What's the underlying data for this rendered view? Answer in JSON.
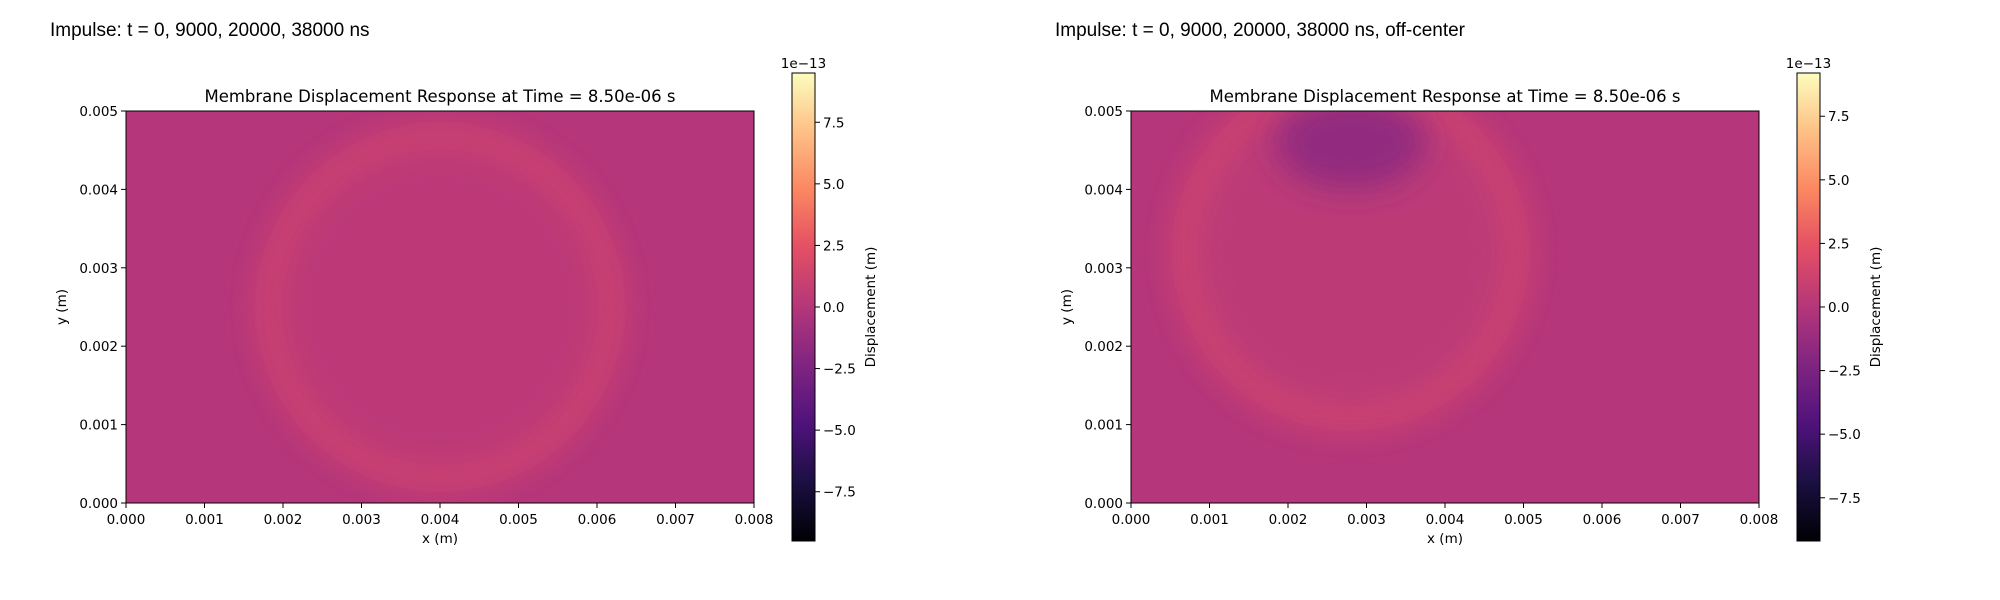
{
  "panels": [
    {
      "heading": "Impulse: t = 0, 9000, 20000, 38000 ns"
    },
    {
      "heading": "Impulse: t = 0, 9000, 20000, 38000 ns, off-center"
    }
  ],
  "chart_data": [
    {
      "type": "heatmap",
      "title": "Membrane Displacement Response at Time = 8.50e-06 s",
      "xlabel": "x (m)",
      "ylabel": "y (m)",
      "xlim": [
        0,
        0.008
      ],
      "ylim": [
        0,
        0.005
      ],
      "x_ticks": [
        "0.000",
        "0.001",
        "0.002",
        "0.003",
        "0.004",
        "0.005",
        "0.006",
        "0.007",
        "0.008"
      ],
      "y_ticks": [
        "0.000",
        "0.001",
        "0.002",
        "0.003",
        "0.004",
        "0.005"
      ],
      "colormap": "magma",
      "colorbar": {
        "label": "Displacement (m)",
        "offset_text": "1e−13",
        "range": [
          -9.5,
          9.5
        ],
        "ticks": [
          -7.5,
          -5.0,
          -2.5,
          0.0,
          2.5,
          5.0,
          7.5
        ],
        "tick_labels": [
          "−7.5",
          "−5.0",
          "−2.5",
          "0.0",
          "2.5",
          "5.0",
          "7.5"
        ]
      },
      "background_value": 0.0,
      "features": [
        {
          "shape": "ring",
          "center": [
            0.004,
            0.0025
          ],
          "radius": 0.00215,
          "width": 0.00025,
          "value": 2.0
        },
        {
          "shape": "disk",
          "center": [
            0.004,
            0.0025
          ],
          "radius": 0.0021,
          "value": 0.6
        }
      ]
    },
    {
      "type": "heatmap",
      "title": "Membrane Displacement Response at Time = 8.50e-06 s",
      "xlabel": "x (m)",
      "ylabel": "y (m)",
      "xlim": [
        0,
        0.008
      ],
      "ylim": [
        0,
        0.005
      ],
      "x_ticks": [
        "0.000",
        "0.001",
        "0.002",
        "0.003",
        "0.004",
        "0.005",
        "0.006",
        "0.007",
        "0.008"
      ],
      "y_ticks": [
        "0.000",
        "0.001",
        "0.002",
        "0.003",
        "0.004",
        "0.005"
      ],
      "colormap": "magma",
      "colorbar": {
        "label": "Displacement (m)",
        "offset_text": "1e−13",
        "range": [
          -9.2,
          9.2
        ],
        "ticks": [
          -7.5,
          -5.0,
          -2.5,
          0.0,
          2.5,
          5.0,
          7.5
        ],
        "tick_labels": [
          "−7.5",
          "−5.0",
          "−2.5",
          "0.0",
          "2.5",
          "5.0",
          "7.5"
        ]
      },
      "background_value": 0.0,
      "features": [
        {
          "shape": "ring",
          "center": [
            0.0028,
            0.0032
          ],
          "radius": 0.0021,
          "width": 0.00025,
          "value": 2.0
        },
        {
          "shape": "disk",
          "center": [
            0.0028,
            0.0032
          ],
          "radius": 0.002,
          "value": 0.7
        },
        {
          "shape": "blob",
          "center": [
            0.0028,
            0.0046
          ],
          "radius": 0.0006,
          "value": -1.5
        }
      ]
    }
  ]
}
